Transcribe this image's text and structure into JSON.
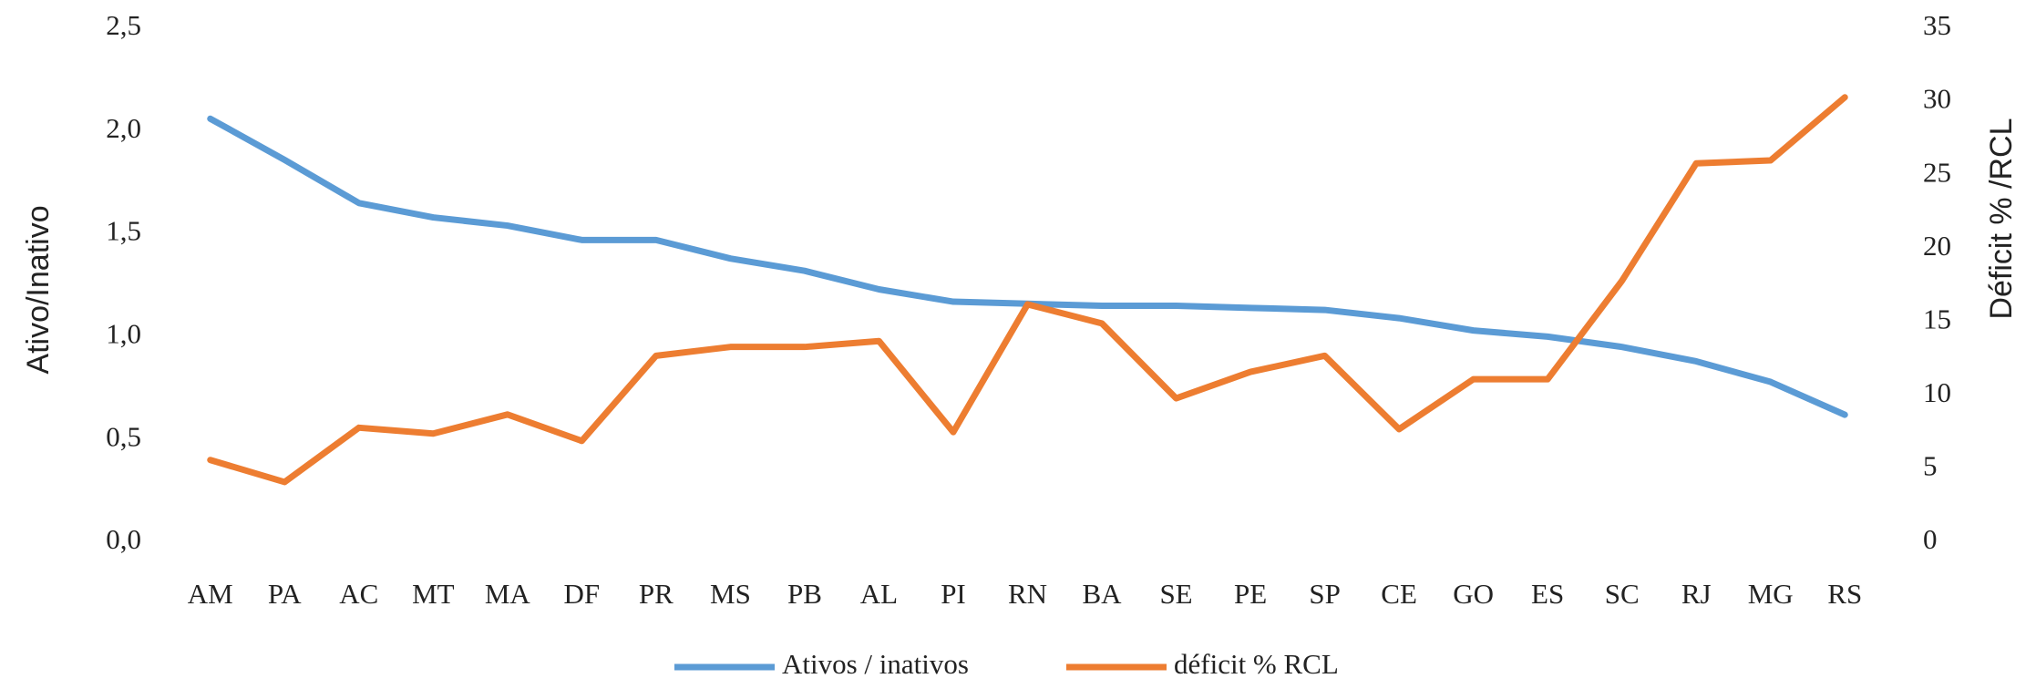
{
  "chart_data": {
    "type": "line",
    "categories": [
      "AM",
      "PA",
      "AC",
      "MT",
      "MA",
      "DF",
      "PR",
      "MS",
      "PB",
      "AL",
      "PI",
      "RN",
      "BA",
      "SE",
      "PE",
      "SP",
      "CE",
      "GO",
      "ES",
      "SC",
      "RJ",
      "MG",
      "RS"
    ],
    "series": [
      {
        "name": "Ativos / inativos",
        "color": "#5b9bd5",
        "axis": "y",
        "values": [
          2.06,
          1.86,
          1.65,
          1.58,
          1.54,
          1.47,
          1.47,
          1.38,
          1.32,
          1.23,
          1.17,
          1.16,
          1.15,
          1.15,
          1.14,
          1.13,
          1.09,
          1.03,
          1.0,
          0.95,
          0.88,
          0.78,
          0.62
        ]
      },
      {
        "name": "déficit % RCL",
        "color": "#ed7d31",
        "axis": "y2",
        "values": [
          5.6,
          4.1,
          7.8,
          7.4,
          8.7,
          6.9,
          12.7,
          13.3,
          13.3,
          13.7,
          7.5,
          16.2,
          14.9,
          9.8,
          11.6,
          12.7,
          7.7,
          11.1,
          11.1,
          17.8,
          25.8,
          26.0,
          30.3
        ]
      }
    ],
    "ylabel": "Ativo/Inativo",
    "y2label": "Déficit % /RCL",
    "ylim": [
      0,
      2.5
    ],
    "yticks": [
      {
        "value": 0,
        "label": "0,0"
      },
      {
        "value": 0.5,
        "label": "0,5"
      },
      {
        "value": 1,
        "label": "1,0"
      },
      {
        "value": 1.5,
        "label": "1,5"
      },
      {
        "value": 2,
        "label": "2,0"
      },
      {
        "value": 2.5,
        "label": "2,5"
      }
    ],
    "y2lim": [
      0,
      35
    ],
    "y2ticks": [
      0,
      5,
      10,
      15,
      20,
      25,
      30,
      35
    ],
    "grid": false,
    "legend": "bottom"
  }
}
